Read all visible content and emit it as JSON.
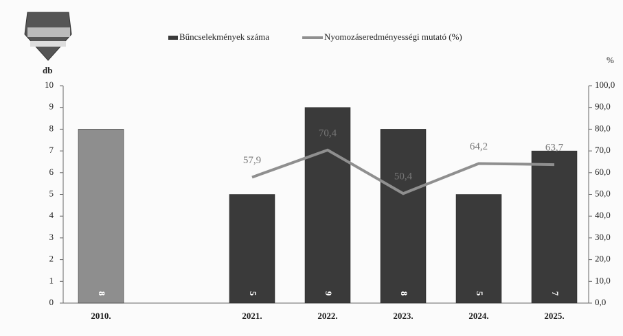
{
  "chart_data": {
    "type": "bar",
    "y_label": "db",
    "y2_label": "%",
    "categories": [
      "2010.",
      null,
      "2021.",
      "2022.",
      "2023.",
      "2024.",
      "2025."
    ],
    "series": [
      {
        "name": "Bűncselekmények száma",
        "type": "bar",
        "color": "#3a3a3a",
        "colors": [
          "#8e8e8e",
          "#3a3a3a",
          "#3a3a3a",
          "#3a3a3a",
          "#3a3a3a",
          "#3a3a3a",
          "#3a3a3a"
        ],
        "values": [
          8,
          null,
          5,
          9,
          8,
          5,
          7
        ]
      },
      {
        "name": "Nyomozáseredményességi mutató (%)",
        "type": "line",
        "axis": "y2",
        "color": "#8f8f8f",
        "values": [
          null,
          null,
          57.9,
          70.4,
          50.4,
          64.2,
          63.7
        ],
        "value_labels": [
          null,
          null,
          "57,9",
          "70,4",
          "50,4",
          "64,2",
          "63,7"
        ]
      }
    ],
    "ylim": [
      0,
      10
    ],
    "yticks": [
      0,
      1,
      2,
      3,
      4,
      5,
      6,
      7,
      8,
      9,
      10
    ],
    "y2lim": [
      0,
      100
    ],
    "y2ticks": [
      {
        "value": 0,
        "label": "0,0"
      },
      {
        "value": 10,
        "label": "10,0"
      },
      {
        "value": 20,
        "label": "20,0"
      },
      {
        "value": 30,
        "label": "30,0"
      },
      {
        "value": 40,
        "label": "40,0"
      },
      {
        "value": 50,
        "label": "50,0"
      },
      {
        "value": 60,
        "label": "60,0"
      },
      {
        "value": 70,
        "label": "70,0"
      },
      {
        "value": 80,
        "label": "80,0"
      },
      {
        "value": 90,
        "label": "90,0"
      },
      {
        "value": 100,
        "label": "100,0"
      }
    ]
  }
}
